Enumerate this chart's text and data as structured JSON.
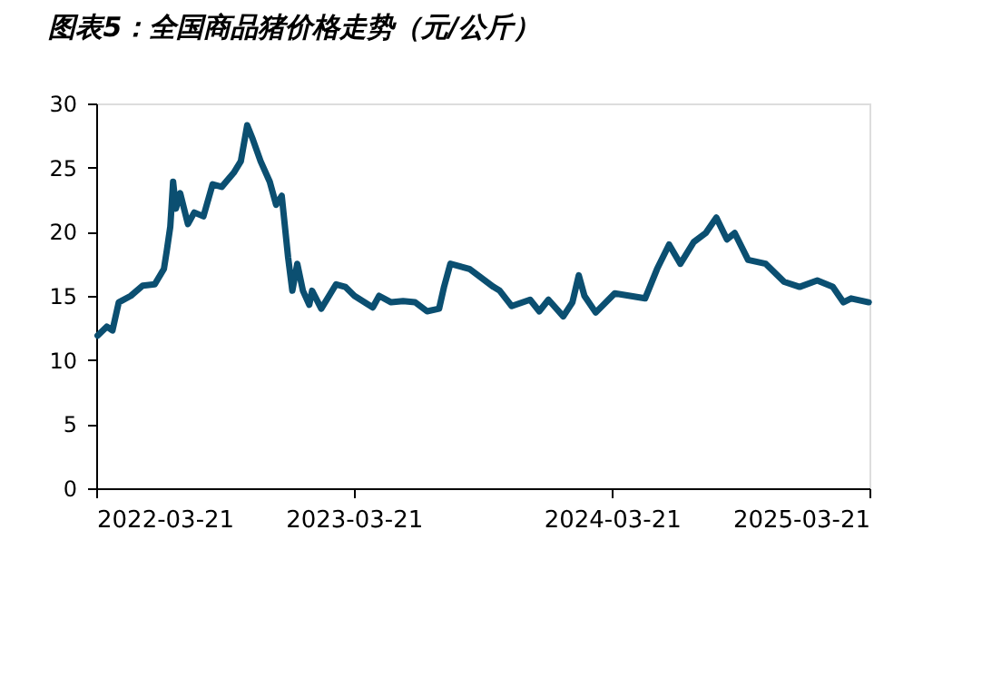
{
  "chart_data": {
    "type": "line",
    "title": "图表5：全国商品猪价格走势（元/公斤）",
    "x": [
      "2022-03-23",
      "2022-04-05",
      "2022-04-13",
      "2022-04-22",
      "2022-05-09",
      "2022-05-26",
      "2022-06-12",
      "2022-06-25",
      "2022-06-29",
      "2022-07-04",
      "2022-07-08",
      "2022-07-12",
      "2022-07-18",
      "2022-07-29",
      "2022-08-07",
      "2022-08-20",
      "2022-09-02",
      "2022-09-15",
      "2022-10-02",
      "2022-10-12",
      "2022-10-21",
      "2022-10-29",
      "2022-11-09",
      "2022-11-22",
      "2022-12-01",
      "2022-12-09",
      "2022-12-18",
      "2022-12-24",
      "2022-12-31",
      "2023-01-08",
      "2023-01-17",
      "2023-01-21",
      "2023-02-03",
      "2023-02-24",
      "2023-03-09",
      "2023-03-22",
      "2023-04-17",
      "2023-04-26",
      "2023-05-13",
      "2023-05-30",
      "2023-06-16",
      "2023-07-03",
      "2023-07-20",
      "2023-07-27",
      "2023-08-05",
      "2023-09-01",
      "2023-10-05",
      "2023-10-14",
      "2023-10-31",
      "2023-11-26",
      "2023-12-09",
      "2023-12-22",
      "2024-01-12",
      "2024-01-25",
      "2024-02-03",
      "2024-02-11",
      "2024-02-27",
      "2024-03-25",
      "2024-05-07",
      "2024-05-24",
      "2024-06-10",
      "2024-06-26",
      "2024-07-15",
      "2024-08-01",
      "2024-08-16",
      "2024-08-31",
      "2024-09-11",
      "2024-09-30",
      "2024-10-25",
      "2024-11-20",
      "2024-12-12",
      "2025-01-06",
      "2025-01-28",
      "2025-02-12",
      "2025-02-23",
      "2025-03-20"
    ],
    "series": [
      {
        "color": "#0b4f71",
        "values": [
          11.9,
          12.6,
          12.3,
          14.5,
          15.0,
          15.8,
          15.9,
          17.1,
          18.5,
          20.4,
          23.9,
          21.8,
          23.0,
          20.6,
          21.5,
          21.2,
          23.7,
          23.5,
          24.6,
          25.5,
          28.3,
          27.2,
          25.5,
          23.9,
          22.1,
          22.8,
          18.0,
          15.4,
          17.5,
          15.4,
          14.3,
          15.4,
          14.0,
          15.9,
          15.7,
          15.0,
          14.1,
          15.0,
          14.5,
          14.6,
          14.5,
          13.8,
          14.0,
          15.7,
          17.5,
          17.1,
          15.7,
          15.4,
          14.2,
          14.7,
          13.8,
          14.7,
          13.4,
          14.5,
          16.6,
          15.0,
          13.7,
          15.2,
          14.8,
          17.1,
          19.0,
          17.5,
          19.2,
          19.9,
          21.1,
          19.4,
          19.9,
          17.8,
          17.5,
          16.1,
          15.7,
          16.2,
          15.7,
          14.5,
          14.8,
          14.5
        ]
      }
    ],
    "xlim": [
      "2022-03-21",
      "2025-03-21"
    ],
    "xticks": [
      "2022-03-21",
      "2023-03-21",
      "2024-03-21",
      "2025-03-21"
    ],
    "ylim": [
      0,
      30
    ],
    "yticks": [
      0,
      5,
      10,
      15,
      20,
      25,
      30
    ],
    "grid": false,
    "legend": false,
    "marker": "none",
    "line_style": "solid"
  }
}
